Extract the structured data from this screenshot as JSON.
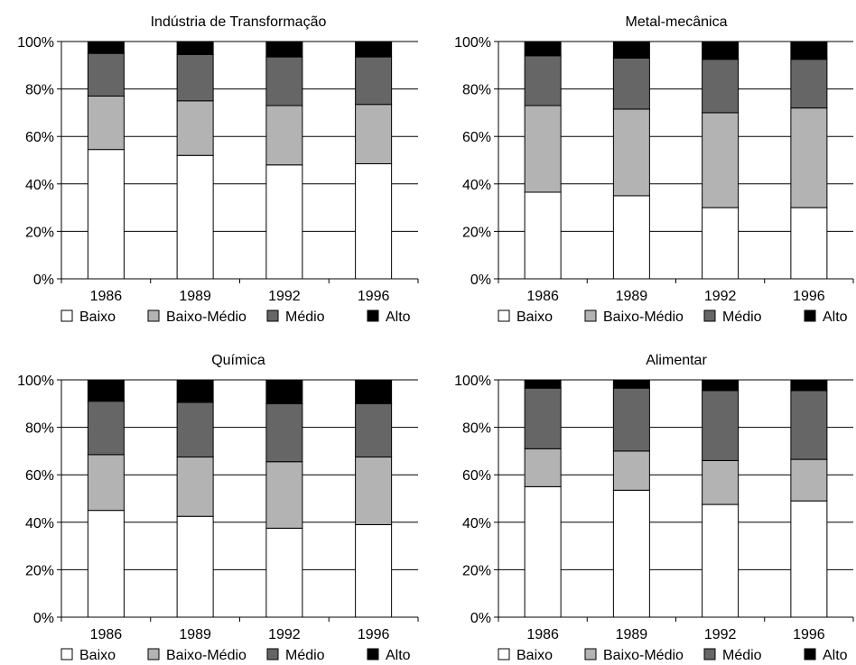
{
  "chart_data": [
    {
      "type": "bar",
      "stacked": true,
      "title": "Indústria de Transformação",
      "categories": [
        "1986",
        "1989",
        "1992",
        "1996"
      ],
      "ylim": [
        0,
        100
      ],
      "yticks": [
        "0%",
        "20%",
        "40%",
        "60%",
        "80%",
        "100%"
      ],
      "grid": true,
      "legend_position": "bottom",
      "series": [
        {
          "name": "Baixo",
          "values": [
            54.5,
            52,
            48,
            48.5
          ]
        },
        {
          "name": "Baixo-Médio",
          "values": [
            22.5,
            23,
            25,
            25
          ]
        },
        {
          "name": "Médio",
          "values": [
            18,
            19.5,
            20.5,
            20
          ]
        },
        {
          "name": "Alto",
          "values": [
            5,
            5.5,
            6.5,
            6.5
          ]
        }
      ]
    },
    {
      "type": "bar",
      "stacked": true,
      "title": "Metal-mecânica",
      "categories": [
        "1986",
        "1989",
        "1992",
        "1996"
      ],
      "ylim": [
        0,
        100
      ],
      "yticks": [
        "0%",
        "20%",
        "40%",
        "60%",
        "80%",
        "100%"
      ],
      "grid": true,
      "legend_position": "bottom",
      "series": [
        {
          "name": "Baixo",
          "values": [
            36.5,
            35,
            30,
            30
          ]
        },
        {
          "name": "Baixo-Médio",
          "values": [
            36.5,
            36.5,
            40,
            42
          ]
        },
        {
          "name": "Médio",
          "values": [
            21,
            21.5,
            22.5,
            20.5
          ]
        },
        {
          "name": "Alto",
          "values": [
            6,
            7,
            7.5,
            7.5
          ]
        }
      ]
    },
    {
      "type": "bar",
      "stacked": true,
      "title": "Química",
      "categories": [
        "1986",
        "1989",
        "1992",
        "1996"
      ],
      "ylim": [
        0,
        100
      ],
      "yticks": [
        "0%",
        "20%",
        "40%",
        "60%",
        "80%",
        "100%"
      ],
      "grid": true,
      "legend_position": "bottom",
      "series": [
        {
          "name": "Baixo",
          "values": [
            45,
            42.5,
            37.5,
            39
          ]
        },
        {
          "name": "Baixo-Médio",
          "values": [
            23.5,
            25,
            28,
            28.5
          ]
        },
        {
          "name": "Médio",
          "values": [
            22.5,
            23,
            24.5,
            22.5
          ]
        },
        {
          "name": "Alto",
          "values": [
            9,
            9.5,
            10,
            10
          ]
        }
      ]
    },
    {
      "type": "bar",
      "stacked": true,
      "title": "Alimentar",
      "categories": [
        "1986",
        "1989",
        "1992",
        "1996"
      ],
      "ylim": [
        0,
        100
      ],
      "yticks": [
        "0%",
        "20%",
        "40%",
        "60%",
        "80%",
        "100%"
      ],
      "grid": true,
      "legend_position": "bottom",
      "series": [
        {
          "name": "Baixo",
          "values": [
            55,
            53.5,
            47.5,
            49
          ]
        },
        {
          "name": "Baixo-Médio",
          "values": [
            16,
            16.5,
            18.5,
            17.5
          ]
        },
        {
          "name": "Médio",
          "values": [
            25.5,
            26.5,
            29.5,
            29
          ]
        },
        {
          "name": "Alto",
          "values": [
            3.5,
            3.5,
            4.5,
            4.5
          ]
        }
      ]
    }
  ],
  "colors": {
    "Baixo": "#ffffff",
    "Baixo-Médio": "#b3b3b3",
    "Médio": "#666666",
    "Alto": "#000000",
    "axis": "#000000",
    "grid": "#000000"
  }
}
